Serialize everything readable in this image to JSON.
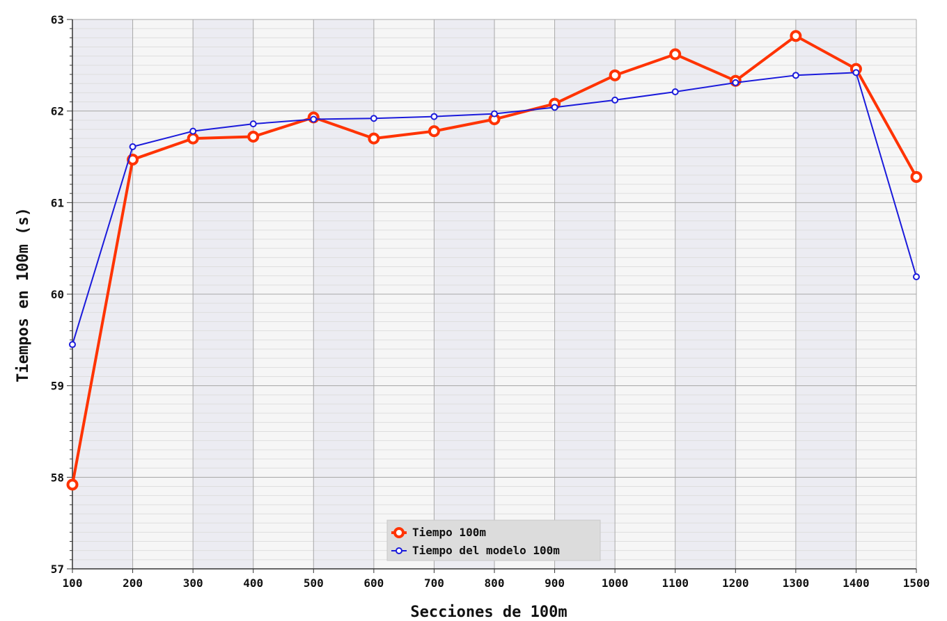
{
  "chart_data": {
    "type": "line",
    "xlabel": "Secciones de 100m",
    "ylabel": "Tiempos en 100m (s)",
    "x": [
      100,
      200,
      300,
      400,
      500,
      600,
      700,
      800,
      900,
      1000,
      1100,
      1200,
      1300,
      1400,
      1500
    ],
    "x_ticks": [
      "100",
      "200",
      "300",
      "400",
      "500",
      "600",
      "700",
      "800",
      "900",
      "1000",
      "1100",
      "1200",
      "1300",
      "1400",
      "1500"
    ],
    "y_ticks": [
      "57",
      "58",
      "59",
      "60",
      "61",
      "62",
      "63"
    ],
    "xlim": [
      100,
      1500
    ],
    "ylim": [
      57,
      63
    ],
    "grid": true,
    "legend_position": "bottom-center",
    "series": [
      {
        "name": "Tiempo 100m",
        "color": "#ff3300",
        "values": [
          57.92,
          61.47,
          61.7,
          61.72,
          61.93,
          61.7,
          61.78,
          61.91,
          62.08,
          62.39,
          62.62,
          62.33,
          62.82,
          62.46,
          61.28
        ]
      },
      {
        "name": "Tiempo del modelo 100m",
        "color": "#1a1adb",
        "values": [
          59.45,
          61.61,
          61.78,
          61.86,
          61.91,
          61.92,
          61.94,
          61.97,
          62.04,
          62.12,
          62.21,
          62.31,
          62.39,
          62.42,
          60.19
        ]
      }
    ]
  }
}
